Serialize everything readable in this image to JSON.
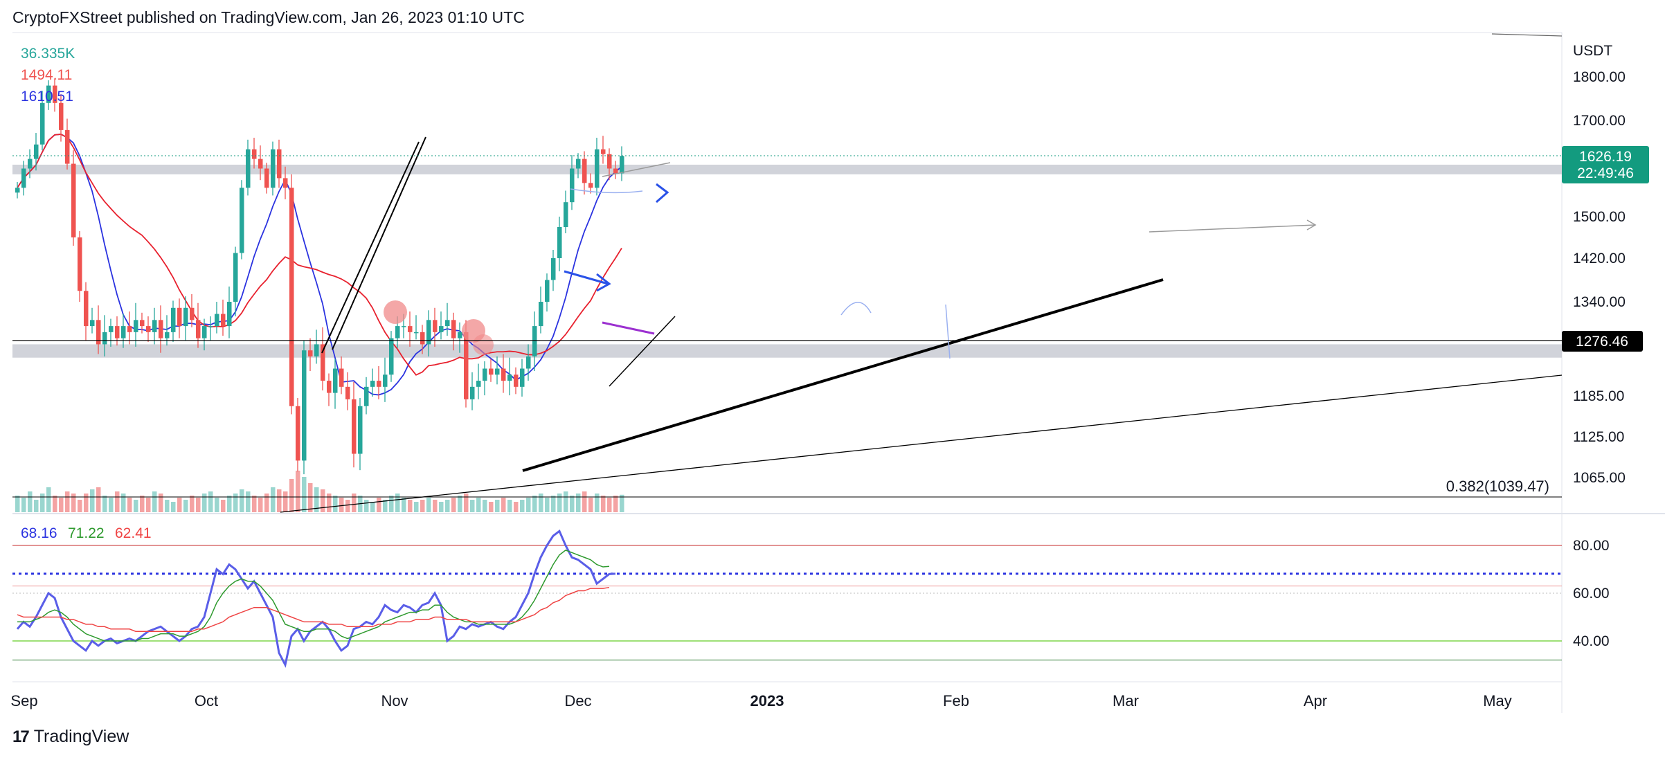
{
  "header": {
    "publisher": "CryptoFXStreet published on TradingView.com, Jan 26, 2023 01:10 UTC"
  },
  "footer": {
    "brand": "TradingView"
  },
  "colors": {
    "up": "#26a69a",
    "down": "#ef5350",
    "ma_fast": "#2b33e0",
    "ma_slow": "#e8212e",
    "rsi": "#5a5ee8",
    "rsi_ma_green": "#2e9a2e",
    "rsi_ma_red": "#ef4444",
    "badge_price": "#139b7f",
    "badge_line": "#000000",
    "zone": "#c9cbd3"
  },
  "chart_data": [
    {
      "type": "candlestick",
      "title": "",
      "y_axis_unit": "USDT",
      "ylim": [
        1030,
        1850
      ],
      "grid": false,
      "x_labels": [
        "Sep",
        "Oct",
        "Nov",
        "Dec",
        "2023",
        "Feb",
        "Mar",
        "Apr",
        "May"
      ],
      "y_ticks": [
        "1800.00",
        "1700.00",
        "1500.00",
        "1420.00",
        "1340.00",
        "1185.00",
        "1125.00",
        "1065.00"
      ],
      "legend_values": [
        {
          "label": "36.335K",
          "color": "#26a69a"
        },
        {
          "label": "1494.11",
          "color": "#ef5350"
        },
        {
          "label": "1610.51",
          "color": "#2b33e0"
        }
      ],
      "current_price": {
        "value": "1626.19",
        "countdown": "22:49:46"
      },
      "horizontal_line": {
        "label": "1276.46",
        "value": 1276.46
      },
      "fib_level": {
        "label": "0.382(1039.47)",
        "value": 1039.47
      },
      "zones": [
        {
          "from": 1588,
          "to": 1608
        },
        {
          "from": 1248,
          "to": 1270
        }
      ],
      "close_series": [
        1560,
        1600,
        1620,
        1650,
        1740,
        1780,
        1740,
        1680,
        1610,
        1460,
        1360,
        1300,
        1310,
        1270,
        1290,
        1300,
        1280,
        1300,
        1290,
        1310,
        1300,
        1290,
        1310,
        1280,
        1290,
        1330,
        1300,
        1330,
        1310,
        1280,
        1300,
        1300,
        1320,
        1300,
        1340,
        1430,
        1560,
        1640,
        1620,
        1600,
        1560,
        1640,
        1580,
        1560,
        1170,
        1090,
        1260,
        1250,
        1270,
        1210,
        1190,
        1230,
        1200,
        1180,
        1100,
        1170,
        1200,
        1210,
        1200,
        1220,
        1280,
        1300,
        1300,
        1290,
        1290,
        1270,
        1310,
        1290,
        1300,
        1310,
        1280,
        1290,
        1180,
        1200,
        1210,
        1230,
        1220,
        1230,
        1210,
        1220,
        1200,
        1230,
        1250,
        1300,
        1340,
        1380,
        1420,
        1480,
        1530,
        1600,
        1620,
        1570,
        1560,
        1640,
        1630,
        1600,
        1590,
        1626.19
      ]
    },
    {
      "type": "volume",
      "title": "",
      "values": [
        40,
        35,
        50,
        30,
        45,
        60,
        40,
        35,
        50,
        45,
        30,
        45,
        55,
        60,
        40,
        35,
        50,
        45,
        35,
        30,
        40,
        35,
        50,
        45,
        30,
        25,
        35,
        30,
        40,
        35,
        45,
        50,
        35,
        30,
        40,
        45,
        55,
        50,
        40,
        35,
        45,
        60,
        55,
        50,
        80,
        100,
        85,
        70,
        60,
        55,
        45,
        40,
        35,
        30,
        45,
        40,
        30,
        25,
        35,
        30,
        40,
        45,
        35,
        30,
        25,
        30,
        35,
        30,
        25,
        30,
        35,
        40,
        45,
        30,
        35,
        30,
        25,
        30,
        35,
        30,
        25,
        30,
        35,
        40,
        45,
        35,
        40,
        45,
        50,
        40,
        45,
        50,
        35,
        45,
        40,
        35,
        40,
        42
      ]
    },
    {
      "type": "line",
      "title": "",
      "legend_values": [
        {
          "label": "68.16",
          "color": "#2b33e0"
        },
        {
          "label": "71.22",
          "color": "#2e9a2e"
        },
        {
          "label": "62.41",
          "color": "#ef4444"
        }
      ],
      "ylim": [
        28,
        90
      ],
      "y_ticks": [
        "80.00",
        "60.00",
        "40.00"
      ],
      "series": [
        {
          "values": [
            45,
            48,
            46,
            50,
            55,
            60,
            58,
            50,
            45,
            40,
            38,
            36,
            40,
            38,
            40,
            41,
            39,
            40,
            41,
            40,
            42,
            44,
            45,
            46,
            44,
            42,
            40,
            42,
            45,
            46,
            50,
            60,
            70,
            68,
            72,
            70,
            66,
            62,
            65,
            60,
            55,
            50,
            35,
            30,
            42,
            45,
            40,
            44,
            46,
            48,
            45,
            40,
            36,
            38,
            45,
            46,
            48,
            47,
            50,
            55,
            53,
            52,
            55,
            54,
            52,
            55,
            56,
            60,
            55,
            40,
            42,
            46,
            45,
            47,
            46,
            47,
            48,
            46,
            45,
            48,
            50,
            55,
            60,
            68,
            75,
            80,
            84,
            86,
            80,
            75,
            74,
            72,
            70,
            64,
            66,
            68,
            68.16
          ]
        },
        {
          "values": [
            48,
            48,
            48,
            49,
            50,
            52,
            53,
            52,
            50,
            47,
            45,
            43,
            42,
            41,
            40,
            40,
            40,
            40,
            40,
            40,
            41,
            41,
            42,
            43,
            43,
            43,
            42,
            42,
            43,
            44,
            46,
            50,
            56,
            60,
            63,
            65,
            66,
            65,
            65,
            63,
            60,
            57,
            52,
            47,
            46,
            45,
            44,
            44,
            45,
            45,
            45,
            44,
            42,
            41,
            42,
            43,
            44,
            45,
            46,
            48,
            49,
            50,
            51,
            52,
            52,
            53,
            53,
            55,
            55,
            52,
            50,
            49,
            48,
            48,
            47,
            47,
            47,
            47,
            47,
            47,
            48,
            50,
            53,
            57,
            62,
            67,
            72,
            76,
            78,
            77,
            76,
            75,
            74,
            72,
            71,
            71.22
          ]
        },
        {
          "values": [
            51,
            50,
            50,
            50,
            50,
            50,
            50,
            50,
            49,
            49,
            48,
            47,
            47,
            46,
            46,
            45,
            45,
            45,
            45,
            44,
            44,
            44,
            44,
            44,
            44,
            44,
            44,
            44,
            44,
            45,
            45,
            46,
            47,
            48,
            50,
            51,
            52,
            53,
            54,
            54,
            54,
            53,
            52,
            51,
            50,
            49,
            48,
            48,
            48,
            48,
            47,
            47,
            47,
            46,
            46,
            46,
            46,
            46,
            47,
            47,
            47,
            48,
            48,
            48,
            49,
            49,
            49,
            50,
            50,
            49,
            49,
            49,
            49,
            48,
            48,
            48,
            48,
            48,
            48,
            48,
            48,
            49,
            50,
            51,
            53,
            54,
            56,
            57,
            59,
            60,
            61,
            61,
            62,
            62,
            62,
            62.41
          ]
        }
      ],
      "reference_levels": [
        80,
        68.16,
        40,
        32
      ]
    }
  ]
}
